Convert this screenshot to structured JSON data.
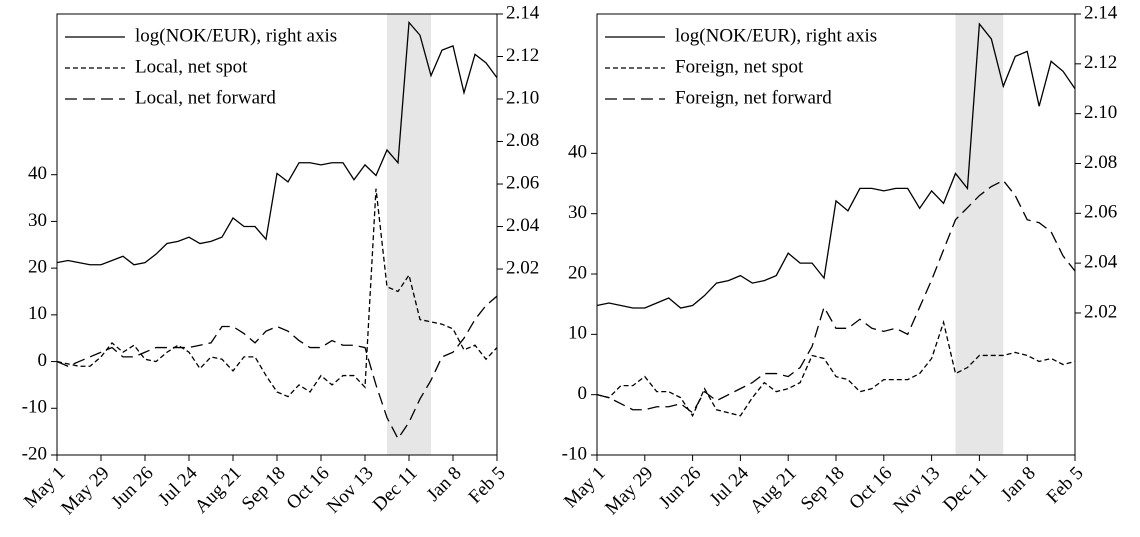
{
  "chart_data": [
    {
      "type": "line",
      "categories": [
        "May 1",
        null,
        null,
        null,
        "May 29",
        null,
        null,
        null,
        "Jun 26",
        null,
        null,
        null,
        "Jul 24",
        null,
        null,
        null,
        "Aug 21",
        null,
        null,
        null,
        "Sep 18",
        null,
        null,
        null,
        "Oct 16",
        null,
        null,
        null,
        "Nov 13",
        null,
        null,
        null,
        "Dec 11",
        null,
        null,
        null,
        "Jan 8",
        null,
        null,
        null,
        "Feb 5"
      ],
      "ylim": [
        -20,
        74.4
      ],
      "yticks": [
        -20,
        -10,
        0,
        10,
        20,
        30,
        40
      ],
      "y2lim": [
        1.9325,
        2.14
      ],
      "y2ticks": [
        2.02,
        2.04,
        2.06,
        2.08,
        {
          "value": 2.1,
          "label": "2.10"
        },
        2.12,
        2.14
      ],
      "shaded_range": [
        30,
        34
      ],
      "shade_color": "#e6e6e6",
      "grid": false,
      "legend": "upper left",
      "series": [
        {
          "name": "log(NOK/EUR), right axis",
          "axis": "y2",
          "color": "#000000",
          "linestyle": "solid",
          "values": [
            2.023,
            2.024,
            2.023,
            2.022,
            2.022,
            2.024,
            2.026,
            2.022,
            2.023,
            2.027,
            2.032,
            2.033,
            2.035,
            2.032,
            2.033,
            2.035,
            2.044,
            2.04,
            2.04,
            2.034,
            2.065,
            2.061,
            2.07,
            2.07,
            2.069,
            2.07,
            2.07,
            2.062,
            2.069,
            2.064,
            2.076,
            2.07,
            2.136,
            2.13,
            2.111,
            2.123,
            2.125,
            2.103,
            2.121,
            2.117,
            2.11
          ]
        },
        {
          "name": "Local, net spot",
          "color": "#000000",
          "linestyle": "dashed",
          "values": [
            0,
            -0.5,
            -1,
            -1,
            1,
            4,
            2,
            3.5,
            0.5,
            0,
            2,
            3.5,
            2,
            -1.5,
            1,
            0.5,
            -2,
            1,
            1,
            -3,
            -6.5,
            -7.5,
            -5,
            -6.5,
            -3,
            -5,
            -3,
            -3,
            -5.5,
            37,
            16,
            15,
            18.5,
            9,
            8.5,
            8,
            7,
            2.5,
            3.5,
            0.5,
            3
          ]
        },
        {
          "name": "Local, net forward",
          "color": "#000000",
          "linestyle": "longdash",
          "values": [
            0,
            -1,
            0,
            1,
            2,
            3,
            1,
            1,
            2,
            3,
            3,
            3,
            3,
            3.5,
            4,
            7.5,
            7.5,
            6,
            4,
            6.5,
            7.5,
            6.5,
            4.5,
            3,
            3,
            4.5,
            3.5,
            3.5,
            3,
            -5,
            -12,
            -16.5,
            -13,
            -8,
            -4,
            1,
            2,
            5,
            9,
            12,
            14
          ]
        }
      ]
    },
    {
      "type": "line",
      "categories": [
        "May 1",
        null,
        null,
        null,
        "May 29",
        null,
        null,
        null,
        "Jun 26",
        null,
        null,
        null,
        "Jul 24",
        null,
        null,
        null,
        "Aug 21",
        null,
        null,
        null,
        "Sep 18",
        null,
        null,
        null,
        "Oct 16",
        null,
        null,
        null,
        "Nov 13",
        null,
        null,
        null,
        "Dec 11",
        null,
        null,
        null,
        "Jan 8",
        null,
        null,
        null,
        "Feb 5"
      ],
      "ylim": [
        -10,
        63.1
      ],
      "yticks": [
        -10,
        0,
        10,
        20,
        30,
        40
      ],
      "y2lim": [
        1.963,
        2.14
      ],
      "y2ticks": [
        2.02,
        2.04,
        2.06,
        2.08,
        {
          "value": 2.1,
          "label": "2.10"
        },
        2.12,
        2.14
      ],
      "shaded_range": [
        30,
        34
      ],
      "shade_color": "#e6e6e6",
      "grid": false,
      "legend": "upper left",
      "series": [
        {
          "name": "log(NOK/EUR), right axis",
          "axis": "y2",
          "color": "#000000",
          "linestyle": "solid",
          "values": [
            2.023,
            2.024,
            2.023,
            2.022,
            2.022,
            2.024,
            2.026,
            2.022,
            2.023,
            2.027,
            2.032,
            2.033,
            2.035,
            2.032,
            2.033,
            2.035,
            2.044,
            2.04,
            2.04,
            2.034,
            2.065,
            2.061,
            2.07,
            2.07,
            2.069,
            2.07,
            2.07,
            2.062,
            2.069,
            2.064,
            2.076,
            2.07,
            2.136,
            2.13,
            2.111,
            2.123,
            2.125,
            2.103,
            2.121,
            2.117,
            2.11
          ]
        },
        {
          "name": "Foreign, net spot",
          "color": "#000000",
          "linestyle": "dashed",
          "values": [
            0,
            -0.5,
            1.5,
            1.5,
            3,
            0.5,
            0.5,
            -0.5,
            -3.5,
            1,
            -2.5,
            -3,
            -3.5,
            -0.5,
            2,
            0.5,
            1,
            2,
            6.5,
            6,
            3,
            2.5,
            0.5,
            1,
            2.5,
            2.5,
            2.5,
            3.5,
            6,
            12,
            3.5,
            4.5,
            6.5,
            6.5,
            6.5,
            7,
            6.5,
            5.5,
            6,
            5,
            5.5
          ]
        },
        {
          "name": "Foreign, net forward",
          "color": "#000000",
          "linestyle": "longdash",
          "values": [
            0,
            -0.5,
            -1.5,
            -2.5,
            -2.5,
            -2,
            -2,
            -1.5,
            -3,
            0.5,
            -1,
            0,
            1,
            2,
            3.5,
            3.5,
            3,
            4.5,
            8,
            14.5,
            11,
            11,
            12.5,
            11,
            10.5,
            11,
            10,
            14.5,
            19,
            24,
            29,
            31,
            33,
            34.5,
            35.5,
            33,
            29,
            28.5,
            27,
            23,
            20.5
          ]
        }
      ]
    }
  ]
}
